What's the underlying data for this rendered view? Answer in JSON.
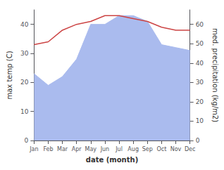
{
  "chart_data": {
    "type": "line",
    "categories": [
      "Jan",
      "Feb",
      "Mar",
      "Apr",
      "May",
      "Jun",
      "Jul",
      "Aug",
      "Sep",
      "Oct",
      "Nov",
      "Dec"
    ],
    "series": [
      {
        "type": "area",
        "color": "#aabbee",
        "values": [
          23,
          19,
          22,
          28,
          40,
          40,
          43,
          43,
          41,
          33,
          32,
          31
        ]
      },
      {
        "type": "line",
        "color": "#cc4444",
        "values": [
          33,
          34,
          38,
          40,
          41,
          43,
          43,
          42,
          41,
          39,
          38,
          38
        ]
      }
    ],
    "xlabel": "date (month)",
    "ylabel": "max temp (C)",
    "y2label": "med. precipitation (kg/m2)",
    "ylim": [
      0,
      45
    ],
    "yticks": [
      0,
      10,
      20,
      30,
      40
    ],
    "y2lim": [
      0,
      67.5
    ],
    "y2ticks": [
      0,
      10,
      20,
      30,
      40,
      50,
      60
    ],
    "grid": false
  }
}
